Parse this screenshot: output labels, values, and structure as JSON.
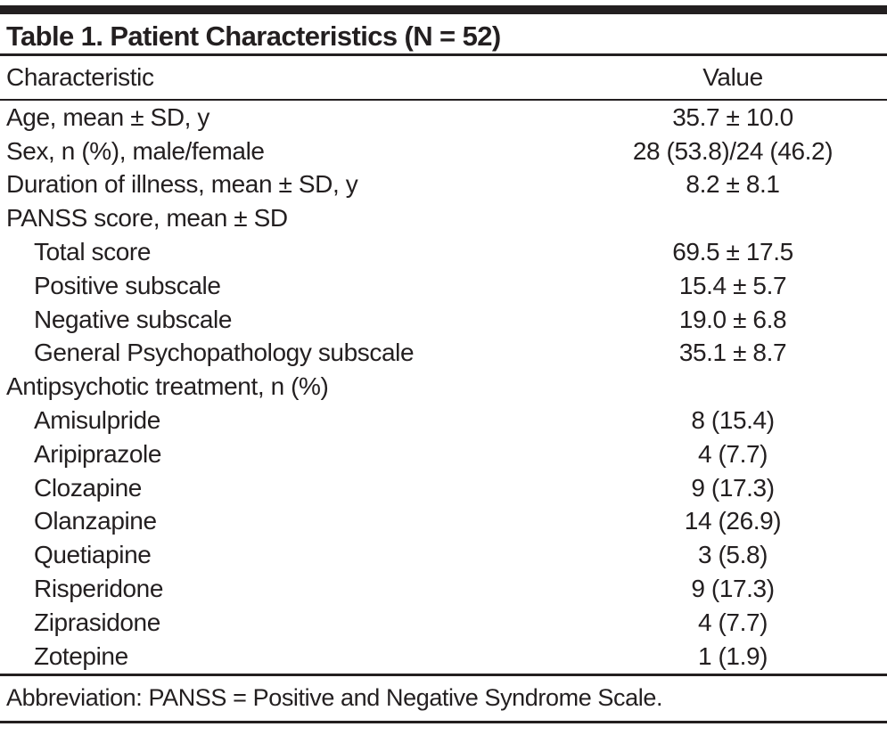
{
  "colors": {
    "text": "#231f20",
    "rule": "#231f20",
    "background": "#ffffff"
  },
  "table": {
    "title": "Table 1. Patient Characteristics (N = 52)",
    "columns": [
      "Characteristic",
      "Value"
    ],
    "rows": [
      {
        "label": "Age, mean ± SD, y",
        "value": "35.7 ± 10.0",
        "indent": 0
      },
      {
        "label": "Sex, n (%), male/female",
        "value": "28 (53.8)/24 (46.2)",
        "indent": 0
      },
      {
        "label": "Duration of illness, mean ± SD, y",
        "value": "8.2 ± 8.1",
        "indent": 0
      },
      {
        "label": "PANSS score, mean ± SD",
        "value": "",
        "indent": 0
      },
      {
        "label": "Total score",
        "value": "69.5 ± 17.5",
        "indent": 1
      },
      {
        "label": "Positive subscale",
        "value": "15.4 ± 5.7",
        "indent": 1
      },
      {
        "label": "Negative subscale",
        "value": "19.0 ± 6.8",
        "indent": 1
      },
      {
        "label": "General Psychopathology subscale",
        "value": "35.1 ± 8.7",
        "indent": 1
      },
      {
        "label": "Antipsychotic treatment, n (%)",
        "value": "",
        "indent": 0
      },
      {
        "label": "Amisulpride",
        "value": "8 (15.4)",
        "indent": 1
      },
      {
        "label": "Aripiprazole",
        "value": "4 (7.7)",
        "indent": 1
      },
      {
        "label": "Clozapine",
        "value": "9 (17.3)",
        "indent": 1
      },
      {
        "label": "Olanzapine",
        "value": "14 (26.9)",
        "indent": 1
      },
      {
        "label": "Quetiapine",
        "value": "3 (5.8)",
        "indent": 1
      },
      {
        "label": "Risperidone",
        "value": "9 (17.3)",
        "indent": 1
      },
      {
        "label": "Ziprasidone",
        "value": "4 (7.7)",
        "indent": 1
      },
      {
        "label": "Zotepine",
        "value": "1 (1.9)",
        "indent": 1
      }
    ],
    "footnote": "Abbreviation: PANSS = Positive and Negative Syndrome Scale."
  }
}
